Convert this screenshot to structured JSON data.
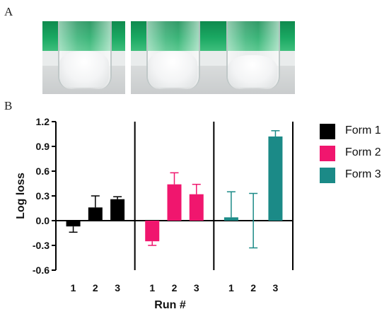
{
  "panels": {
    "a_label": "A",
    "b_label": "B"
  },
  "photos": [
    {
      "name": "vial-photo-1"
    },
    {
      "name": "vial-photo-2"
    },
    {
      "name": "vial-photo-3"
    }
  ],
  "chart_data": {
    "type": "bar",
    "title": "",
    "xlabel": "Run #",
    "ylabel": "Log loss",
    "ylim": [
      -0.6,
      1.2
    ],
    "yticks": [
      "-0.6",
      "-0.3",
      "0.0",
      "0.3",
      "0.6",
      "0.9",
      "1.2"
    ],
    "categories": [
      "1",
      "2",
      "3"
    ],
    "grid": false,
    "legend_position": "right",
    "series": [
      {
        "name": "Form 1",
        "color": "#000000",
        "values": [
          -0.07,
          0.16,
          0.26
        ],
        "errors": [
          0.07,
          0.14,
          0.03
        ]
      },
      {
        "name": "Form 2",
        "color": "#f0166e",
        "values": [
          -0.25,
          0.44,
          0.32
        ],
        "errors": [
          0.05,
          0.14,
          0.12
        ]
      },
      {
        "name": "Form 3",
        "color": "#1b8a87",
        "values": [
          0.04,
          0.0,
          1.02
        ],
        "errors": [
          0.31,
          0.33,
          0.07
        ]
      }
    ]
  }
}
